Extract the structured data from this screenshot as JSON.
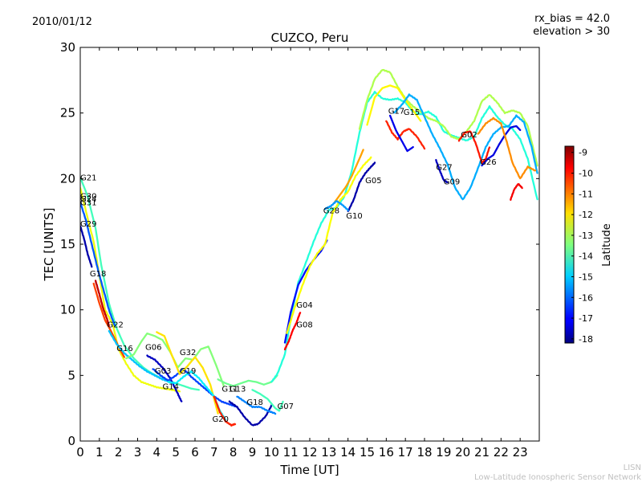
{
  "header": {
    "date": "2010/01/12",
    "rx_bias": "rx_bias = 42.0",
    "elevation": "elevation > 30"
  },
  "footer": {
    "brand": "LISN",
    "network": "Low-Latitude Ionospheric Sensor Network"
  },
  "colorbar": {
    "label": "Latitude",
    "ticks": [
      "-9",
      "-10",
      "-11",
      "-12",
      "-13",
      "-14",
      "-15",
      "-16",
      "-17",
      "-18"
    ],
    "range": [
      -18.2,
      -8.7
    ]
  },
  "chart_data": {
    "type": "scatter",
    "title": "CUZCO, Peru",
    "xlabel": "Time [UT]",
    "ylabel": "TEC [UNITS]",
    "xlim": [
      0,
      24
    ],
    "ylim": [
      0,
      30
    ],
    "xticks": [
      "0",
      "1",
      "2",
      "3",
      "4",
      "5",
      "6",
      "7",
      "8",
      "9",
      "10",
      "11",
      "12",
      "13",
      "14",
      "15",
      "16",
      "17",
      "18",
      "19",
      "20",
      "21",
      "22",
      "23"
    ],
    "yticks": [
      "0",
      "5",
      "10",
      "15",
      "20",
      "25",
      "30"
    ],
    "grid": false,
    "colormap": "jet",
    "color_variable": "Latitude",
    "satellites": [
      {
        "label": "G21",
        "x": 0.0,
        "y": 20.1
      },
      {
        "label": "G30",
        "x": 0.0,
        "y": 18.7
      },
      {
        "label": "G24",
        "x": 0.0,
        "y": 18.5
      },
      {
        "label": "G31",
        "x": 0.0,
        "y": 18.2
      },
      {
        "label": "G29",
        "x": 0.0,
        "y": 16.6
      },
      {
        "label": "G18",
        "x": 0.5,
        "y": 12.8
      },
      {
        "label": "G22",
        "x": 1.4,
        "y": 8.9
      },
      {
        "label": "G16",
        "x": 1.9,
        "y": 7.1
      },
      {
        "label": "G06",
        "x": 3.4,
        "y": 7.2
      },
      {
        "label": "G03",
        "x": 3.9,
        "y": 5.4
      },
      {
        "label": "G14",
        "x": 4.3,
        "y": 4.2
      },
      {
        "label": "G32",
        "x": 5.2,
        "y": 6.8
      },
      {
        "label": "G19",
        "x": 5.2,
        "y": 5.4
      },
      {
        "label": "G20",
        "x": 6.9,
        "y": 1.7
      },
      {
        "label": "G11",
        "x": 7.4,
        "y": 4.0
      },
      {
        "label": "G13",
        "x": 7.8,
        "y": 4.0
      },
      {
        "label": "G18",
        "x": 8.7,
        "y": 3.0
      },
      {
        "label": "G07",
        "x": 10.3,
        "y": 2.7
      },
      {
        "label": "G04",
        "x": 11.3,
        "y": 10.4
      },
      {
        "label": "G08",
        "x": 11.3,
        "y": 8.9
      },
      {
        "label": "G28",
        "x": 12.7,
        "y": 17.6
      },
      {
        "label": "G10",
        "x": 13.9,
        "y": 17.2
      },
      {
        "label": "G05",
        "x": 14.9,
        "y": 19.9
      },
      {
        "label": "G17",
        "x": 16.1,
        "y": 25.2
      },
      {
        "label": "G15",
        "x": 16.9,
        "y": 25.1
      },
      {
        "label": "G27",
        "x": 18.6,
        "y": 20.9
      },
      {
        "label": "G09",
        "x": 19.0,
        "y": 19.8
      },
      {
        "label": "G02",
        "x": 19.9,
        "y": 23.4
      },
      {
        "label": "G26",
        "x": 20.9,
        "y": 21.3
      }
    ],
    "series": [
      {
        "lat": -12.4,
        "x": [
          0,
          0.3,
          0.7,
          1.0,
          1.3,
          1.7,
          2.0,
          2.4,
          2.8,
          3.2,
          3.6,
          4.0,
          4.4,
          4.8,
          5.2
        ],
        "y": [
          19.3,
          17.5,
          15.2,
          12.6,
          10.0,
          8.9,
          7.0,
          5.9,
          5.0,
          4.5,
          4.3,
          4.1,
          4.0,
          3.9,
          3.8
        ]
      },
      {
        "lat": -14.0,
        "x": [
          0,
          0.4,
          0.8,
          1.1,
          1.5,
          1.9,
          2.3,
          2.8,
          3.3,
          3.7,
          4.2,
          4.6,
          5.0,
          5.4,
          5.8,
          6.2
        ],
        "y": [
          20.1,
          18.6,
          16.2,
          13.4,
          10.5,
          8.6,
          7.3,
          6.3,
          5.6,
          5.2,
          4.8,
          4.6,
          4.4,
          4.2,
          4.0,
          3.9
        ]
      },
      {
        "lat": -16.2,
        "x": [
          0,
          0.3,
          0.6,
          0.9,
          1.2,
          1.5,
          1.8
        ],
        "y": [
          18.2,
          16.8,
          15.0,
          13.2,
          11.6,
          10.0,
          8.8
        ]
      },
      {
        "lat": -17.8,
        "x": [
          0,
          0.2,
          0.4,
          0.6
        ],
        "y": [
          16.4,
          15.4,
          14.2,
          13.3
        ]
      },
      {
        "lat": -10.5,
        "x": [
          0.7,
          1.0,
          1.3,
          1.6,
          2.0,
          2.3
        ],
        "y": [
          12.0,
          10.5,
          9.2,
          8.4,
          7.2,
          6.4
        ]
      },
      {
        "lat": -9.3,
        "x": [
          0.8,
          1.0,
          1.2,
          1.4,
          1.5
        ],
        "y": [
          12.2,
          11.2,
          10.1,
          9.3,
          8.8
        ]
      },
      {
        "lat": -15.2,
        "x": [
          1.5,
          1.9,
          2.3,
          2.7,
          3.1,
          3.5,
          3.9,
          4.3,
          4.7
        ],
        "y": [
          8.4,
          7.4,
          6.7,
          6.2,
          5.7,
          5.3,
          5.0,
          4.7,
          4.5
        ]
      },
      {
        "lat": -13.4,
        "x": [
          2.4,
          2.8,
          3.2,
          3.5,
          3.9,
          4.3,
          4.7,
          5.1,
          5.5,
          5.9,
          6.3,
          6.7,
          7.1,
          7.5
        ],
        "y": [
          6.3,
          6.6,
          7.6,
          8.2,
          8.0,
          7.7,
          6.8,
          5.6,
          6.3,
          6.2,
          7.0,
          7.2,
          5.8,
          4.2
        ]
      },
      {
        "lat": -17.6,
        "x": [
          3.5,
          3.9,
          4.3,
          4.7,
          5.1,
          5.3
        ],
        "y": [
          6.5,
          6.2,
          5.6,
          4.8,
          3.6,
          3.0
        ]
      },
      {
        "lat": -16.4,
        "x": [
          3.8,
          4.2,
          4.6,
          5.0,
          5.4,
          5.8,
          6.2,
          6.6,
          7.0,
          7.4,
          7.8,
          8.2
        ],
        "y": [
          5.5,
          5.0,
          4.6,
          5.0,
          5.5,
          4.9,
          4.4,
          3.9,
          3.4,
          3.0,
          2.8,
          2.6
        ]
      },
      {
        "lat": -12.0,
        "x": [
          4.0,
          4.4,
          4.8,
          5.2,
          5.6,
          6.0,
          6.4,
          6.8,
          7.2
        ],
        "y": [
          8.3,
          8.0,
          6.5,
          5.1,
          5.7,
          6.4,
          5.6,
          4.3,
          2.1
        ]
      },
      {
        "lat": -14.8,
        "x": [
          4.6,
          5.0,
          5.4,
          5.8,
          6.2,
          6.6,
          7.0,
          7.3,
          7.6
        ],
        "y": [
          4.5,
          4.4,
          4.9,
          5.3,
          4.8,
          4.1,
          3.4,
          2.3,
          1.6
        ]
      },
      {
        "lat": -10.2,
        "x": [
          7.0,
          7.3,
          7.6,
          7.9,
          8.1
        ],
        "y": [
          3.4,
          2.2,
          1.5,
          1.2,
          1.3
        ]
      },
      {
        "lat": -13.6,
        "x": [
          7.2,
          7.6,
          8.0,
          8.4,
          8.8,
          9.2,
          9.6,
          10.0,
          10.3
        ],
        "y": [
          4.7,
          4.4,
          4.2,
          4.4,
          4.6,
          4.5,
          4.3,
          4.5,
          5.0
        ]
      },
      {
        "lat": -17.8,
        "x": [
          7.8,
          8.2,
          8.6,
          9.0,
          9.3,
          9.7,
          10.0
        ],
        "y": [
          3.0,
          2.6,
          1.8,
          1.2,
          1.3,
          1.9,
          2.7
        ]
      },
      {
        "lat": -15.8,
        "x": [
          8.2,
          8.6,
          9.0,
          9.4,
          9.8,
          10.2
        ],
        "y": [
          3.4,
          3.0,
          2.6,
          2.6,
          2.3,
          2.1
        ]
      },
      {
        "lat": -14.0,
        "x": [
          9.0,
          9.4,
          9.8,
          10.2,
          10.4,
          10.6
        ],
        "y": [
          3.9,
          3.6,
          3.2,
          2.5,
          2.3,
          3.0
        ]
      },
      {
        "lat": -14.3,
        "x": [
          10.0,
          10.3,
          10.7,
          11.0,
          11.4,
          11.8,
          12.2,
          12.6,
          13.0,
          13.4,
          13.8,
          14.2,
          14.6,
          15.0,
          15.4,
          15.8,
          16.2,
          16.6,
          17.0,
          17.4,
          17.8,
          18.2,
          18.6,
          19.0,
          19.4,
          19.8,
          20.2,
          20.6,
          21.0,
          21.4,
          21.8,
          22.2,
          22.6,
          23.0,
          23.4,
          23.9
        ],
        "y": [
          4.5,
          5.1,
          6.6,
          9.3,
          12.1,
          13.6,
          15.2,
          16.6,
          17.6,
          17.8,
          18.6,
          20.6,
          23.5,
          25.8,
          26.6,
          26.1,
          26.0,
          26.1,
          25.8,
          25.1,
          24.9,
          25.1,
          24.7,
          23.6,
          23.3,
          23.1,
          22.9,
          23.2,
          24.6,
          25.5,
          24.7,
          24.1,
          23.8,
          23.0,
          21.5,
          18.4
        ]
      },
      {
        "lat": -13.0,
        "x": [
          14.6,
          15.0,
          15.4,
          15.8,
          16.2,
          16.6,
          17.0,
          17.4,
          17.8,
          18.2,
          18.6,
          19.0,
          19.4,
          19.8,
          20.2,
          20.6,
          21.0,
          21.4,
          21.8,
          22.2,
          22.6,
          23.0,
          23.4,
          23.9
        ],
        "y": [
          23.8,
          26.0,
          27.6,
          28.3,
          28.1,
          27.0,
          26.1,
          25.5,
          25.1,
          24.6,
          24.4,
          24.0,
          23.2,
          23.0,
          23.6,
          24.4,
          25.9,
          26.4,
          25.8,
          25.0,
          25.2,
          25.0,
          24.0,
          21.0
        ]
      },
      {
        "lat": -12.2,
        "x": [
          15.0,
          15.4,
          15.8,
          16.2,
          16.6,
          17.0,
          17.4,
          17.8
        ],
        "y": [
          24.1,
          26.2,
          26.9,
          27.1,
          26.9,
          26.0,
          25.2,
          24.4
        ]
      },
      {
        "lat": -15.4,
        "x": [
          16.4,
          16.8,
          17.2,
          17.6,
          18.0,
          18.4,
          18.8,
          19.2,
          19.6,
          20.0,
          20.4,
          20.8,
          21.2,
          21.6,
          22.0,
          22.4,
          22.8,
          23.2,
          23.6,
          23.9
        ],
        "y": [
          25.0,
          25.6,
          26.4,
          26.0,
          24.7,
          23.4,
          22.3,
          21.1,
          19.3,
          18.4,
          19.3,
          20.8,
          22.4,
          23.4,
          23.9,
          24.0,
          24.8,
          24.3,
          22.4,
          20.4
        ]
      },
      {
        "lat": -10.2,
        "x": [
          16.0,
          16.3,
          16.6,
          16.9,
          17.2,
          17.6,
          18.0
        ],
        "y": [
          24.4,
          23.5,
          23.0,
          23.6,
          23.8,
          23.2,
          22.3
        ]
      },
      {
        "lat": -17.2,
        "x": [
          16.2,
          16.5,
          16.8,
          17.1,
          17.4
        ],
        "y": [
          24.8,
          23.7,
          22.9,
          22.1,
          22.4
        ]
      },
      {
        "lat": -17.6,
        "x": [
          18.6,
          18.8,
          19.0,
          19.2
        ],
        "y": [
          21.4,
          20.6,
          19.9,
          19.7
        ]
      },
      {
        "lat": -10.1,
        "x": [
          19.8,
          20.1,
          20.4,
          20.7,
          21.0,
          21.2,
          21.4
        ],
        "y": [
          22.9,
          23.5,
          23.6,
          22.6,
          21.2,
          21.5,
          22.4
        ]
      },
      {
        "lat": -17.3,
        "x": [
          21.0,
          21.3,
          21.6,
          21.9,
          22.2,
          22.5,
          22.8,
          23.0
        ],
        "y": [
          21.0,
          21.5,
          21.8,
          22.6,
          23.3,
          23.9,
          24.0,
          23.7
        ]
      },
      {
        "lat": -11.2,
        "x": [
          20.8,
          21.2,
          21.6,
          22.0,
          22.3,
          22.6,
          23.0,
          23.4,
          23.8
        ],
        "y": [
          23.4,
          24.2,
          24.6,
          24.2,
          22.8,
          21.2,
          20.0,
          20.9,
          20.6
        ]
      },
      {
        "lat": -9.8,
        "x": [
          22.5,
          22.7,
          22.9,
          23.1
        ],
        "y": [
          18.4,
          19.2,
          19.6,
          19.3
        ]
      },
      {
        "lat": -16.9,
        "x": [
          10.7,
          11.0,
          11.4,
          11.8,
          12.2,
          12.6,
          12.9
        ],
        "y": [
          7.5,
          9.8,
          11.9,
          13.0,
          13.8,
          14.5,
          15.3
        ]
      },
      {
        "lat": -12.3,
        "x": [
          10.8,
          11.2,
          11.6,
          12.0,
          12.4,
          12.8,
          13.2,
          13.6,
          14.0,
          14.4,
          14.8,
          15.2
        ],
        "y": [
          8.2,
          10.1,
          11.8,
          13.3,
          14.3,
          15.0,
          17.4,
          18.4,
          19.0,
          20.2,
          21.0,
          21.6
        ]
      },
      {
        "lat": -9.9,
        "x": [
          10.7,
          10.9,
          11.1,
          11.3,
          11.5
        ],
        "y": [
          7.0,
          7.6,
          8.4,
          9.0,
          9.8
        ]
      },
      {
        "lat": -11.4,
        "x": [
          13.3,
          13.6,
          13.9,
          14.2,
          14.5,
          14.8
        ],
        "y": [
          18.2,
          18.8,
          19.4,
          20.2,
          21.2,
          22.2
        ]
      },
      {
        "lat": -17.8,
        "x": [
          14.0,
          14.3,
          14.6,
          14.9,
          15.2,
          15.4
        ],
        "y": [
          17.5,
          18.4,
          19.7,
          20.4,
          20.9,
          21.2
        ]
      },
      {
        "lat": -15.6,
        "x": [
          12.8,
          13.1,
          13.4,
          13.7,
          14.0
        ],
        "y": [
          17.7,
          17.9,
          18.3,
          18.0,
          17.6
        ]
      }
    ]
  }
}
